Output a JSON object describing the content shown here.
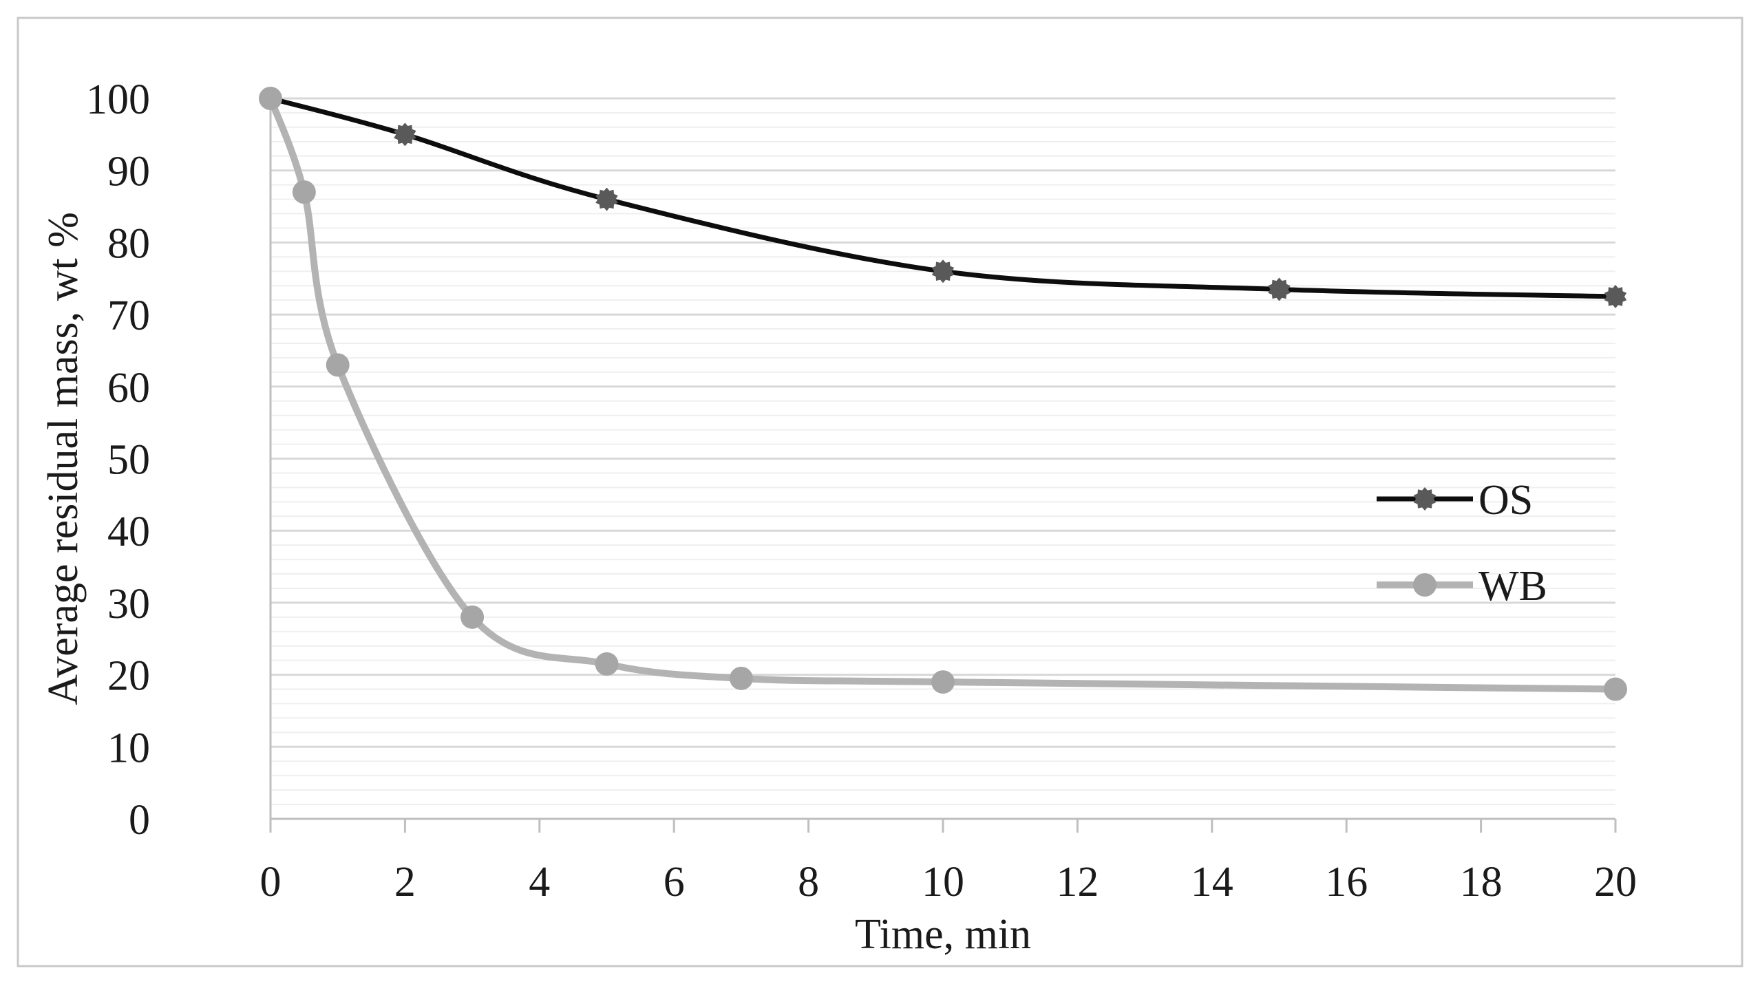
{
  "figure": {
    "background": "#ffffff",
    "border_color": "#c9c9c9"
  },
  "chart_data": {
    "type": "line",
    "title": "",
    "xlabel": "Time, min",
    "ylabel": "Average residual mass, wt %",
    "xlim": [
      0,
      20
    ],
    "ylim": [
      0,
      100
    ],
    "x_ticks": [
      0,
      2,
      4,
      6,
      8,
      10,
      12,
      14,
      16,
      18,
      20
    ],
    "y_ticks": [
      0,
      10,
      20,
      30,
      40,
      50,
      60,
      70,
      80,
      90,
      100
    ],
    "grid": "on",
    "minor_grid_step_y": 2,
    "major_grid_step_y": 10,
    "minor_grid_color": "#efefef",
    "major_grid_color": "#d8d8d8",
    "axis_color": "#bfbfbf",
    "tick_label_color": "#1a1a1a",
    "legend_position": "inside-right",
    "series": [
      {
        "name": "OS",
        "line_color": "#0d0d0d",
        "marker_color": "#595959",
        "marker": "gear",
        "line_width": 7,
        "x": [
          0,
          2,
          5,
          10,
          15,
          20
        ],
        "y": [
          100,
          95,
          86,
          76,
          73.5,
          72.5
        ]
      },
      {
        "name": "WB",
        "line_color": "#b3b3b3",
        "marker_color": "#a6a6a6",
        "marker": "circle",
        "line_width": 10,
        "x": [
          0,
          0.5,
          1,
          3,
          5,
          7,
          10,
          20
        ],
        "y": [
          100,
          87,
          63,
          28,
          21.5,
          19.5,
          19,
          18
        ]
      }
    ]
  },
  "legend": {
    "items": [
      {
        "label": "OS"
      },
      {
        "label": "WB"
      }
    ]
  }
}
